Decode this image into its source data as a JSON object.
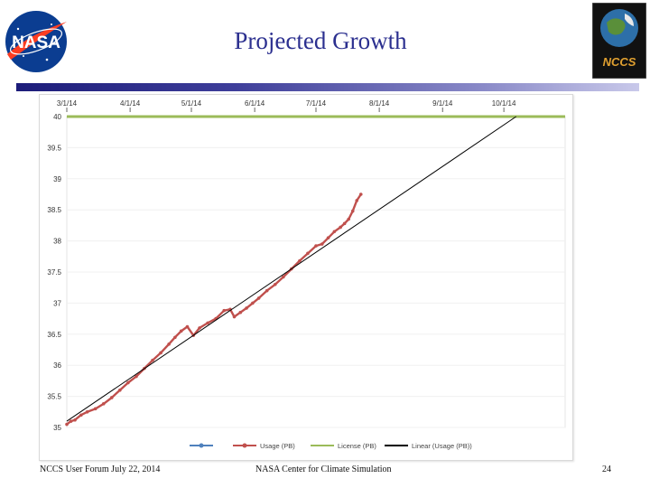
{
  "slide": {
    "title": "Projected Growth",
    "footer_left": "NCCS User Forum July 22, 2014",
    "footer_center": "NASA Center for Climate Simulation",
    "page_number": "24",
    "logo_left_text": "NASA",
    "logo_right_text": "NCCS"
  },
  "colors": {
    "title": "#2b2f8f",
    "usage": "#c0504d",
    "license": "#9bbb59",
    "linear": "#000000",
    "marker_blue": "#4f81bd"
  },
  "chart_data": {
    "type": "line",
    "title": "",
    "xlabel": "",
    "ylabel": "",
    "x_ticks": [
      "3/1/14",
      "4/1/14",
      "5/1/14",
      "6/1/14",
      "7/1/14",
      "8/1/14",
      "9/1/14",
      "10/1/14"
    ],
    "x_tick_days": [
      0,
      31,
      61,
      92,
      122,
      153,
      184,
      214
    ],
    "xlim": [
      0,
      244
    ],
    "ylim": [
      35,
      40
    ],
    "y_ticks": [
      "40",
      "39.5",
      "39",
      "38.5",
      "38",
      "37.5",
      "37",
      "36.5",
      "36",
      "35.5",
      "35"
    ],
    "legend": [
      {
        "name": "",
        "color": "#4f81bd",
        "style": "marker"
      },
      {
        "name": "Usage (PB)",
        "color": "#c0504d",
        "style": "marker"
      },
      {
        "name": "License  (PB)",
        "color": "#9bbb59",
        "style": "line"
      },
      {
        "name": "Linear  (Usage (PB))",
        "color": "#000000",
        "style": "line"
      }
    ],
    "series": [
      {
        "name": "Usage (PB)",
        "x": [
          0,
          2,
          4,
          7,
          10,
          14,
          18,
          22,
          26,
          30,
          34,
          38,
          42,
          46,
          50,
          53,
          56,
          59,
          62,
          65,
          69,
          73,
          77,
          80,
          82,
          85,
          88,
          91,
          94,
          98,
          102,
          106,
          110,
          114,
          118,
          122,
          125,
          128,
          131,
          134,
          136,
          138,
          140,
          142,
          144
        ],
        "values": [
          35.05,
          35.1,
          35.12,
          35.2,
          35.25,
          35.3,
          35.38,
          35.48,
          35.6,
          35.72,
          35.82,
          35.95,
          36.08,
          36.2,
          36.34,
          36.45,
          36.55,
          36.62,
          36.48,
          36.6,
          36.68,
          36.75,
          36.88,
          36.9,
          36.78,
          36.85,
          36.92,
          37.0,
          37.08,
          37.2,
          37.3,
          37.42,
          37.55,
          37.68,
          37.8,
          37.92,
          37.95,
          38.05,
          38.15,
          38.22,
          38.28,
          38.35,
          38.48,
          38.65,
          38.75
        ]
      },
      {
        "name": "License  (PB)",
        "x": [
          0,
          244
        ],
        "values": [
          40,
          40
        ]
      },
      {
        "name": "Linear  (Usage (PB))",
        "x": [
          0,
          220
        ],
        "values": [
          35.1,
          40.0
        ]
      }
    ]
  }
}
